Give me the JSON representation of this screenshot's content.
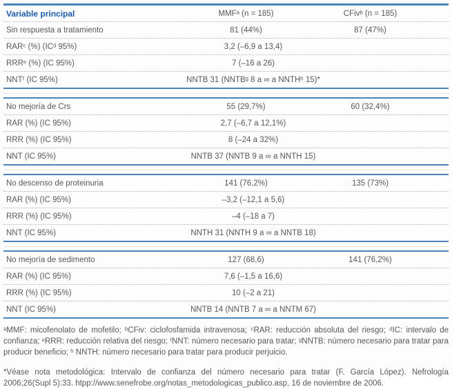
{
  "colors": {
    "rule_blue": "#4a82ba",
    "header_text_blue": "#1c5ca8",
    "body_text": "#58585a"
  },
  "table": {
    "header": {
      "variable": "Variable principal",
      "mmf": "MMFᵃ (n = 185)",
      "cfiv": "CFivᵇ (n = 185)"
    },
    "sections": [
      {
        "outcome": {
          "label": "Sin respuesta a tratamiento",
          "mmf": "81 (44%)",
          "cfiv": "87 (47%)"
        },
        "stats": [
          {
            "label": "RARᶜ (%) (ICᵈ 95%)",
            "value": "3,2 (–6,9 a 13,4)"
          },
          {
            "label": "RRRᵉ (%) (IC 95%)",
            "value": "7 (–16 a 26)"
          },
          {
            "label": "NNTᶠ (IC 95%)",
            "value": "NNTB 31 (NNTBᵍ 8 a ∞ a NNTHʰ 15)*"
          }
        ]
      },
      {
        "outcome": {
          "label": "No mejoría de Crs",
          "mmf": "55 (29,7%)",
          "cfiv": "60 (32,4%)"
        },
        "stats": [
          {
            "label": "RAR (%) (IC 95%)",
            "value": "2,7 (–6,7 a 12,1%)"
          },
          {
            "label": "RRR (%) (IC 95%)",
            "value": "8 (–24 a 32%)"
          },
          {
            "label": "NNT (IC 95%)",
            "value": "NNTB 37 (NNTB 9 a ∞ a NNTH 15)"
          }
        ]
      },
      {
        "outcome": {
          "label": "No descenso de proteinuria",
          "mmf": "141 (76,2%)",
          "cfiv": "135 (73%)"
        },
        "stats": [
          {
            "label": "RAR (%) (IC 95%)",
            "value": "–3,2 (–12,1 a 5,6)"
          },
          {
            "label": "RRR (%) (IC 95%)",
            "value": "–4 (–18 a 7)"
          },
          {
            "label": "NNT (IC 95%)",
            "value": "NNTH 31 (NNTH 9 a ∞ a NNTB 18)"
          }
        ]
      },
      {
        "outcome": {
          "label": "No mejoría de sedimento",
          "mmf": "127 (68,6)",
          "cfiv": "141 (76,2%)"
        },
        "stats": [
          {
            "label": "RAR (%) (IC 95%)",
            "value": "7,6 (–1,5 a 16,6)"
          },
          {
            "label": "RRR (%) (IC 95%)",
            "value": "10 (–2 a 21)"
          },
          {
            "label": "NNT (IC 95%)",
            "value": "NNTB 14 (NNTB 7 a ∞ a NNTM 67)"
          }
        ]
      }
    ]
  },
  "footnotes": {
    "abbreviations": "ᵃMMF: micofenolato de mofetilo; ᵇCFiv: ciclofosfamida intravenosa; ᶜRAR: reducción absoluta del riesgo; ᵈIC: intervalo de confianza; ᵉRRR: reducción relativa del riesgo; ᶠNNT: número necesario para tratar; ᵍNNTB: número necesario para tratar para producir beneficio; ʰ NNTH: número necesario para tratar para producir perjuicio.",
    "methodological_note": "*Véase nota metodológica: Intervalo de confianza del número necesario para tratar (F. García López). Nefrología 2006;26(Supl 5):33. htpp://www.senefrobe.org/notas_metodologicas_publico.asp, 16 de noviembre de 2006."
  }
}
